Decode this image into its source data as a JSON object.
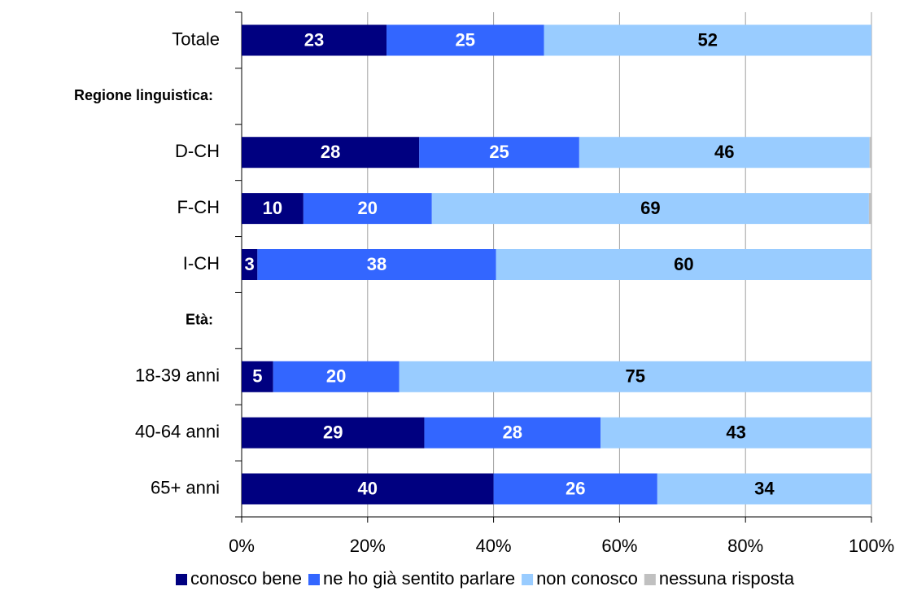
{
  "chart_data": {
    "type": "stacked_bar_horizontal",
    "categories": [
      "Totale",
      "Regione linguistica:",
      "D-CH",
      "F-CH",
      "I-CH",
      "Età:",
      "18-39 anni",
      "40-64 anni",
      "65+ anni"
    ],
    "series": [
      {
        "name": "conosco bene",
        "color": "#000080",
        "values": [
          23,
          null,
          28.2,
          9.8,
          2.5,
          null,
          5,
          29,
          40
        ],
        "value_labels": [
          "23",
          null,
          "28",
          "10",
          "3",
          null,
          "5",
          "29",
          "40"
        ]
      },
      {
        "name": "ne ho già sentito parlare",
        "color": "#3366ff",
        "values": [
          25,
          null,
          25.4,
          20.4,
          37.9,
          null,
          20,
          28,
          26
        ],
        "value_labels": [
          "25",
          null,
          "25",
          "20",
          "38",
          null,
          "20",
          "28",
          "26"
        ]
      },
      {
        "name": "non conosco",
        "color": "#99ccff",
        "values": [
          52,
          null,
          46.1,
          69.4,
          59.6,
          null,
          75,
          43,
          34
        ],
        "value_labels": [
          "52",
          null,
          "46",
          "69",
          "60",
          null,
          "75",
          "43",
          "34"
        ]
      },
      {
        "name": "nessuna risposta",
        "color": "#c0c0c0",
        "values": [
          0,
          null,
          0.3,
          0.4,
          0,
          null,
          0,
          0,
          0
        ]
      }
    ],
    "xlim": [
      0,
      100
    ],
    "xticks": [
      {
        "value": 0,
        "label": "0%"
      },
      {
        "value": 20,
        "label": "20%"
      },
      {
        "value": 40,
        "label": "40%"
      },
      {
        "value": 60,
        "label": "60%"
      },
      {
        "value": 80,
        "label": "80%"
      },
      {
        "value": 100,
        "label": "100%"
      }
    ],
    "grid": true,
    "legend": "bottom"
  }
}
